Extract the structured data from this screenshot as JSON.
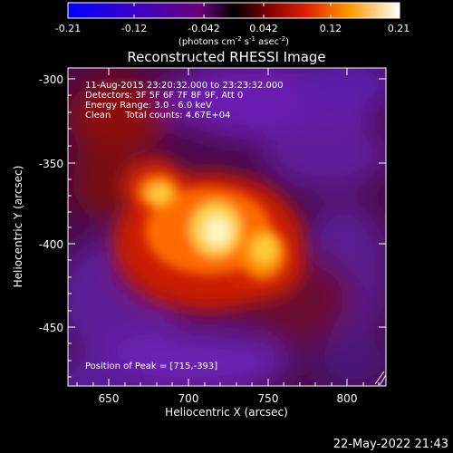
{
  "colorbar": {
    "ticks": [
      "-0.21",
      "-0.12",
      "-0.042",
      "0.042",
      "0.12",
      "0.21"
    ],
    "unit_label": "(photons cm",
    "unit_sup1": "-2",
    "unit_mid": " s",
    "unit_sup2": "-1",
    "unit_mid2": " asec",
    "unit_sup3": "-2",
    "unit_end": ")"
  },
  "title": "Reconstructed RHESSI Image",
  "info": {
    "time_range": "11-Aug-2015 23:20:32.000 to 23:23:32.000",
    "detectors": "Detectors: 3F 5F 6F 7F 8F 9F, Att 0",
    "energy": "Energy Range: 3.0 - 6.0 keV",
    "clean": "Clean     Total counts: 4.67E+04"
  },
  "peak_text": "Position of Peak = [715,-393]",
  "x_axis": {
    "label": "Heliocentric X (arcsec)",
    "ticks": [
      "650",
      "700",
      "750",
      "800"
    ]
  },
  "y_axis": {
    "label": "Heliocentric Y (arcsec)",
    "ticks": [
      "-300",
      "-350",
      "-400",
      "-450"
    ]
  },
  "timestamp": "22-May-2022 21:43"
}
